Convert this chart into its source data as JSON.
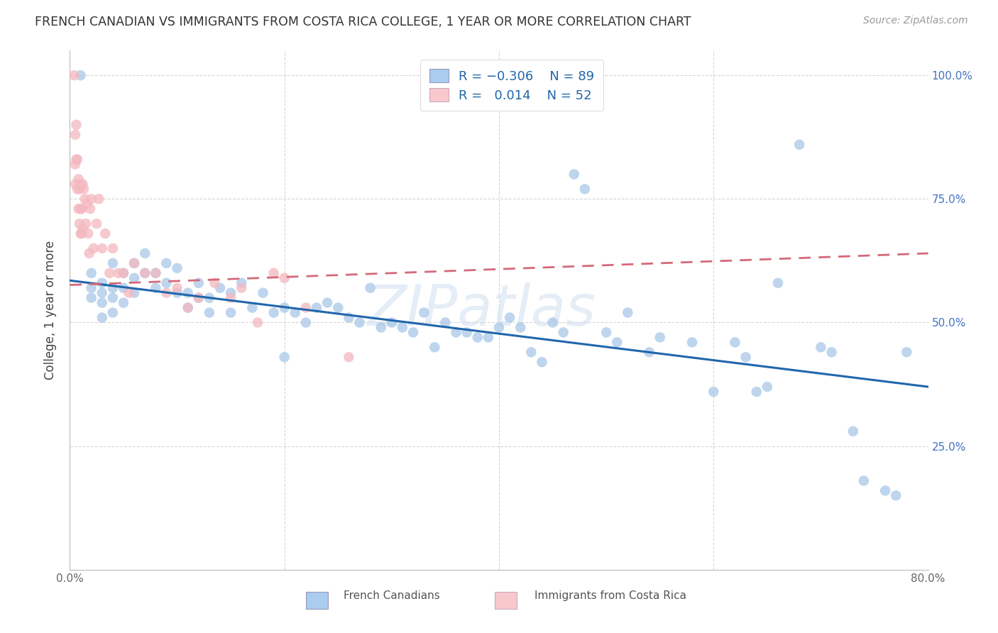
{
  "title": "FRENCH CANADIAN VS IMMIGRANTS FROM COSTA RICA COLLEGE, 1 YEAR OR MORE CORRELATION CHART",
  "source": "Source: ZipAtlas.com",
  "xlabel": "",
  "ylabel": "College, 1 year or more",
  "xlim": [
    0.0,
    0.8
  ],
  "ylim": [
    0.0,
    1.05
  ],
  "blue_color": "#a8c8e8",
  "pink_color": "#f4b8c0",
  "blue_line_color": "#2166ac",
  "pink_line_color": "#d4697a",
  "legend_R_blue": "-0.306",
  "legend_N_blue": "89",
  "legend_R_pink": "0.014",
  "legend_N_pink": "52",
  "watermark": "ZIPatlas",
  "blue_scatter_x": [
    0.01,
    0.02,
    0.02,
    0.02,
    0.03,
    0.03,
    0.03,
    0.03,
    0.04,
    0.04,
    0.04,
    0.04,
    0.05,
    0.05,
    0.05,
    0.06,
    0.06,
    0.06,
    0.07,
    0.07,
    0.08,
    0.08,
    0.09,
    0.09,
    0.1,
    0.1,
    0.11,
    0.11,
    0.12,
    0.12,
    0.13,
    0.13,
    0.14,
    0.15,
    0.15,
    0.16,
    0.17,
    0.18,
    0.19,
    0.2,
    0.21,
    0.22,
    0.23,
    0.24,
    0.25,
    0.26,
    0.27,
    0.28,
    0.29,
    0.3,
    0.31,
    0.32,
    0.33,
    0.34,
    0.35,
    0.36,
    0.37,
    0.38,
    0.39,
    0.4,
    0.41,
    0.42,
    0.43,
    0.44,
    0.45,
    0.46,
    0.47,
    0.48,
    0.5,
    0.51,
    0.52,
    0.54,
    0.55,
    0.58,
    0.6,
    0.62,
    0.63,
    0.64,
    0.65,
    0.66,
    0.68,
    0.7,
    0.71,
    0.73,
    0.74,
    0.76,
    0.77,
    0.78,
    0.2
  ],
  "blue_scatter_y": [
    1.0,
    0.6,
    0.57,
    0.55,
    0.58,
    0.56,
    0.54,
    0.51,
    0.62,
    0.57,
    0.55,
    0.52,
    0.6,
    0.57,
    0.54,
    0.62,
    0.59,
    0.56,
    0.64,
    0.6,
    0.6,
    0.57,
    0.62,
    0.58,
    0.61,
    0.56,
    0.56,
    0.53,
    0.58,
    0.55,
    0.55,
    0.52,
    0.57,
    0.56,
    0.52,
    0.58,
    0.53,
    0.56,
    0.52,
    0.53,
    0.52,
    0.5,
    0.53,
    0.54,
    0.53,
    0.51,
    0.5,
    0.57,
    0.49,
    0.5,
    0.49,
    0.48,
    0.52,
    0.45,
    0.5,
    0.48,
    0.48,
    0.47,
    0.47,
    0.49,
    0.51,
    0.49,
    0.44,
    0.42,
    0.5,
    0.48,
    0.8,
    0.77,
    0.48,
    0.46,
    0.52,
    0.44,
    0.47,
    0.46,
    0.36,
    0.46,
    0.43,
    0.36,
    0.37,
    0.58,
    0.86,
    0.45,
    0.44,
    0.28,
    0.18,
    0.16,
    0.15,
    0.44,
    0.43
  ],
  "pink_scatter_x": [
    0.004,
    0.005,
    0.005,
    0.005,
    0.006,
    0.006,
    0.007,
    0.007,
    0.008,
    0.008,
    0.009,
    0.009,
    0.01,
    0.01,
    0.01,
    0.011,
    0.011,
    0.012,
    0.012,
    0.013,
    0.014,
    0.015,
    0.016,
    0.017,
    0.018,
    0.019,
    0.02,
    0.022,
    0.025,
    0.027,
    0.03,
    0.033,
    0.037,
    0.04,
    0.045,
    0.05,
    0.055,
    0.06,
    0.07,
    0.08,
    0.09,
    0.1,
    0.11,
    0.12,
    0.135,
    0.15,
    0.16,
    0.175,
    0.19,
    0.2,
    0.22,
    0.26
  ],
  "pink_scatter_y": [
    1.0,
    0.88,
    0.82,
    0.78,
    0.9,
    0.83,
    0.83,
    0.77,
    0.79,
    0.73,
    0.77,
    0.7,
    0.78,
    0.73,
    0.68,
    0.73,
    0.68,
    0.78,
    0.69,
    0.77,
    0.75,
    0.7,
    0.74,
    0.68,
    0.64,
    0.73,
    0.75,
    0.65,
    0.7,
    0.75,
    0.65,
    0.68,
    0.6,
    0.65,
    0.6,
    0.6,
    0.56,
    0.62,
    0.6,
    0.6,
    0.56,
    0.57,
    0.53,
    0.55,
    0.58,
    0.55,
    0.57,
    0.5,
    0.6,
    0.59,
    0.53,
    0.43
  ],
  "blue_trendline_x": [
    0.0,
    0.8
  ],
  "blue_trendline_y": [
    0.585,
    0.37
  ],
  "pink_trendline_x": [
    0.0,
    0.8
  ],
  "pink_trendline_y": [
    0.576,
    0.64
  ]
}
